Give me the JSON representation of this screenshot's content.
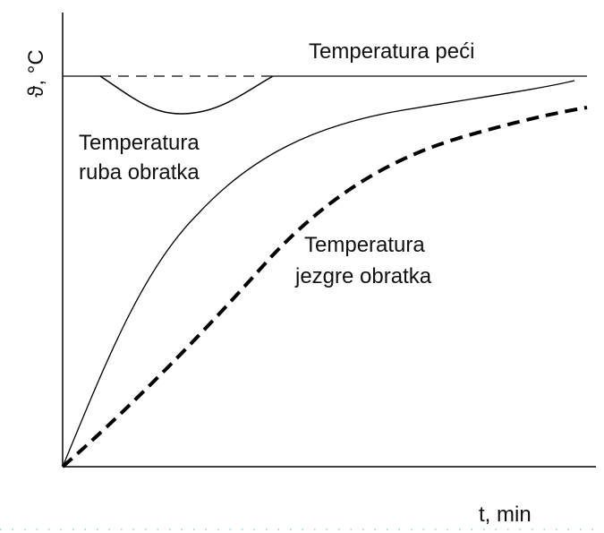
{
  "y_axis_label": "ϑ, °C",
  "x_axis_label": "t, min",
  "curves": [
    {
      "label": [
        "Temperatura peći"
      ]
    },
    {
      "label": [
        "Temperatura",
        "ruba obratka"
      ]
    },
    {
      "label": [
        "Temperatura",
        "jezgre obratka"
      ]
    }
  ]
}
